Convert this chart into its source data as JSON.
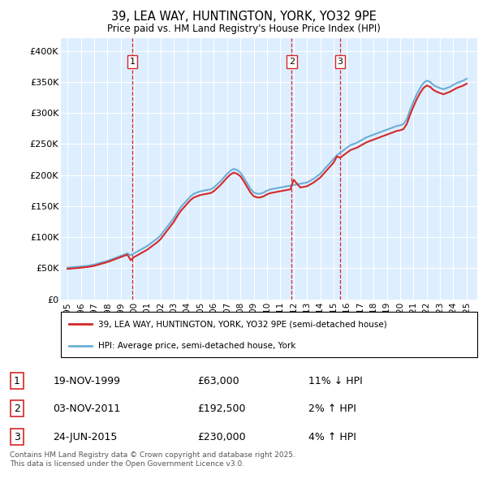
{
  "title_line1": "39, LEA WAY, HUNTINGTON, YORK, YO32 9PE",
  "title_line2": "Price paid vs. HM Land Registry's House Price Index (HPI)",
  "ylim": [
    0,
    420000
  ],
  "yticks": [
    0,
    50000,
    100000,
    150000,
    200000,
    250000,
    300000,
    350000,
    400000
  ],
  "ytick_labels": [
    "£0",
    "£50K",
    "£100K",
    "£150K",
    "£200K",
    "£250K",
    "£300K",
    "£350K",
    "£400K"
  ],
  "xlim_start": 1994.5,
  "xlim_end": 2025.8,
  "xticks": [
    1995,
    1996,
    1997,
    1998,
    1999,
    2000,
    2001,
    2002,
    2003,
    2004,
    2005,
    2006,
    2007,
    2008,
    2009,
    2010,
    2011,
    2012,
    2013,
    2014,
    2015,
    2016,
    2017,
    2018,
    2019,
    2020,
    2021,
    2022,
    2023,
    2024,
    2025
  ],
  "sale_dates": [
    1999.88,
    2011.84,
    2015.48
  ],
  "sale_prices": [
    63000,
    192500,
    230000
  ],
  "sale_labels": [
    "1",
    "2",
    "3"
  ],
  "hpi_color": "#6baed6",
  "price_color": "#d62728",
  "plot_bg_color": "#ddeeff",
  "grid_color": "#ffffff",
  "legend_label_price": "39, LEA WAY, HUNTINGTON, YORK, YO32 9PE (semi-detached house)",
  "legend_label_hpi": "HPI: Average price, semi-detached house, York",
  "table_entries": [
    {
      "num": "1",
      "date": "19-NOV-1999",
      "price": "£63,000",
      "hpi": "11% ↓ HPI"
    },
    {
      "num": "2",
      "date": "03-NOV-2011",
      "price": "£192,500",
      "hpi": "2% ↑ HPI"
    },
    {
      "num": "3",
      "date": "24-JUN-2015",
      "price": "£230,000",
      "hpi": "4% ↑ HPI"
    }
  ],
  "footer": "Contains HM Land Registry data © Crown copyright and database right 2025.\nThis data is licensed under the Open Government Licence v3.0.",
  "hpi_data_x": [
    1995.0,
    1995.25,
    1995.5,
    1995.75,
    1996.0,
    1996.25,
    1996.5,
    1996.75,
    1997.0,
    1997.25,
    1997.5,
    1997.75,
    1998.0,
    1998.25,
    1998.5,
    1998.75,
    1999.0,
    1999.25,
    1999.5,
    1999.75,
    2000.0,
    2000.25,
    2000.5,
    2000.75,
    2001.0,
    2001.25,
    2001.5,
    2001.75,
    2002.0,
    2002.25,
    2002.5,
    2002.75,
    2003.0,
    2003.25,
    2003.5,
    2003.75,
    2004.0,
    2004.25,
    2004.5,
    2004.75,
    2005.0,
    2005.25,
    2005.5,
    2005.75,
    2006.0,
    2006.25,
    2006.5,
    2006.75,
    2007.0,
    2007.25,
    2007.5,
    2007.75,
    2008.0,
    2008.25,
    2008.5,
    2008.75,
    2009.0,
    2009.25,
    2009.5,
    2009.75,
    2010.0,
    2010.25,
    2010.5,
    2010.75,
    2011.0,
    2011.25,
    2011.5,
    2011.75,
    2012.0,
    2012.25,
    2012.5,
    2012.75,
    2013.0,
    2013.25,
    2013.5,
    2013.75,
    2014.0,
    2014.25,
    2014.5,
    2014.75,
    2015.0,
    2015.25,
    2015.5,
    2015.75,
    2016.0,
    2016.25,
    2016.5,
    2016.75,
    2017.0,
    2017.25,
    2017.5,
    2017.75,
    2018.0,
    2018.25,
    2018.5,
    2018.75,
    2019.0,
    2019.25,
    2019.5,
    2019.75,
    2020.0,
    2020.25,
    2020.5,
    2020.75,
    2021.0,
    2021.25,
    2021.5,
    2021.75,
    2022.0,
    2022.25,
    2022.5,
    2022.75,
    2023.0,
    2023.25,
    2023.5,
    2023.75,
    2024.0,
    2024.25,
    2024.5,
    2024.75,
    2025.0
  ],
  "hpi_data_y": [
    51000,
    51500,
    52000,
    52500,
    53000,
    53500,
    54000,
    55000,
    56000,
    57500,
    59000,
    60500,
    62000,
    64000,
    66000,
    68000,
    70000,
    72000,
    74000,
    71000,
    74000,
    77000,
    80000,
    83000,
    86000,
    90000,
    94000,
    98000,
    103000,
    110000,
    117000,
    124000,
    131000,
    140000,
    148000,
    154000,
    160000,
    166000,
    170000,
    172000,
    174000,
    175000,
    176000,
    177000,
    180000,
    185000,
    190000,
    196000,
    202000,
    207000,
    210000,
    208000,
    204000,
    196000,
    187000,
    178000,
    172000,
    170000,
    170000,
    172000,
    175000,
    177000,
    178000,
    179000,
    180000,
    181000,
    182000,
    183000,
    184000,
    185000,
    186000,
    187000,
    188000,
    191000,
    194000,
    198000,
    202000,
    208000,
    214000,
    220000,
    226000,
    232000,
    236000,
    240000,
    244000,
    248000,
    250000,
    252000,
    255000,
    258000,
    261000,
    263000,
    265000,
    267000,
    269000,
    271000,
    273000,
    275000,
    277000,
    279000,
    280000,
    282000,
    290000,
    305000,
    318000,
    330000,
    340000,
    348000,
    352000,
    350000,
    345000,
    342000,
    340000,
    338000,
    340000,
    342000,
    345000,
    348000,
    350000,
    352000,
    355000
  ],
  "price_data_x": [
    1995.0,
    1995.25,
    1995.5,
    1995.75,
    1996.0,
    1996.25,
    1996.5,
    1996.75,
    1997.0,
    1997.25,
    1997.5,
    1997.75,
    1998.0,
    1998.25,
    1998.5,
    1998.75,
    1999.0,
    1999.25,
    1999.5,
    1999.75,
    2000.0,
    2000.25,
    2000.5,
    2000.75,
    2001.0,
    2001.25,
    2001.5,
    2001.75,
    2002.0,
    2002.25,
    2002.5,
    2002.75,
    2003.0,
    2003.25,
    2003.5,
    2003.75,
    2004.0,
    2004.25,
    2004.5,
    2004.75,
    2005.0,
    2005.25,
    2005.5,
    2005.75,
    2006.0,
    2006.25,
    2006.5,
    2006.75,
    2007.0,
    2007.25,
    2007.5,
    2007.75,
    2008.0,
    2008.25,
    2008.5,
    2008.75,
    2009.0,
    2009.25,
    2009.5,
    2009.75,
    2010.0,
    2010.25,
    2010.5,
    2010.75,
    2011.0,
    2011.25,
    2011.5,
    2011.75,
    2012.0,
    2012.25,
    2012.5,
    2012.75,
    2013.0,
    2013.25,
    2013.5,
    2013.75,
    2014.0,
    2014.25,
    2014.5,
    2014.75,
    2015.0,
    2015.25,
    2015.5,
    2015.75,
    2016.0,
    2016.25,
    2016.5,
    2016.75,
    2017.0,
    2017.25,
    2017.5,
    2017.75,
    2018.0,
    2018.25,
    2018.5,
    2018.75,
    2019.0,
    2019.25,
    2019.5,
    2019.75,
    2020.0,
    2020.25,
    2020.5,
    2020.75,
    2021.0,
    2021.25,
    2021.5,
    2021.75,
    2022.0,
    2022.25,
    2022.5,
    2022.75,
    2023.0,
    2023.25,
    2023.5,
    2023.75,
    2024.0,
    2024.25,
    2024.5,
    2024.75,
    2025.0
  ],
  "price_data_y": [
    49000,
    49500,
    50000,
    50500,
    51000,
    51500,
    52000,
    53000,
    54000,
    55500,
    57000,
    58500,
    60000,
    62000,
    64000,
    66000,
    68000,
    70000,
    72000,
    63000,
    68000,
    71000,
    74000,
    77000,
    80000,
    84000,
    88000,
    92000,
    97000,
    104000,
    111000,
    118000,
    125000,
    134000,
    142000,
    148000,
    154000,
    160000,
    164000,
    166000,
    168000,
    169000,
    170000,
    171000,
    174000,
    179000,
    184000,
    190000,
    196000,
    201000,
    204000,
    202000,
    198000,
    190000,
    181000,
    172000,
    166000,
    164000,
    164000,
    166000,
    169000,
    171000,
    172000,
    173000,
    174000,
    175000,
    176000,
    177000,
    192500,
    186000,
    180000,
    181000,
    182000,
    185000,
    188000,
    192000,
    196000,
    202000,
    208000,
    214000,
    220000,
    230000,
    228000,
    232000,
    236000,
    240000,
    242000,
    244000,
    247000,
    250000,
    253000,
    255000,
    257000,
    259000,
    261000,
    263000,
    265000,
    267000,
    269000,
    271000,
    272000,
    274000,
    282000,
    297000,
    310000,
    322000,
    332000,
    340000,
    344000,
    342000,
    337000,
    334000,
    332000,
    330000,
    332000,
    334000,
    337000,
    340000,
    342000,
    344000,
    347000
  ]
}
